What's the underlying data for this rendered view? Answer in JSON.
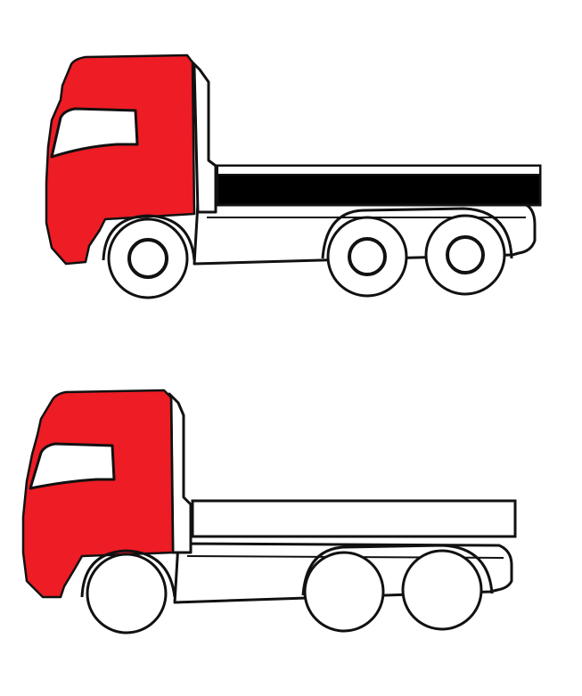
{
  "colors": {
    "background": "#ffffff",
    "cab": "#ee1c24",
    "outline": "#111111",
    "truck1_platform": "#000000",
    "truck2_platform": "#ffffff"
  },
  "trucks": [
    {
      "name": "truck-with-black-platform",
      "cab_color": "red",
      "platform_fill": "black",
      "axles": 3
    },
    {
      "name": "truck-with-white-platform",
      "cab_color": "red",
      "platform_fill": "white",
      "axles": 3
    }
  ]
}
